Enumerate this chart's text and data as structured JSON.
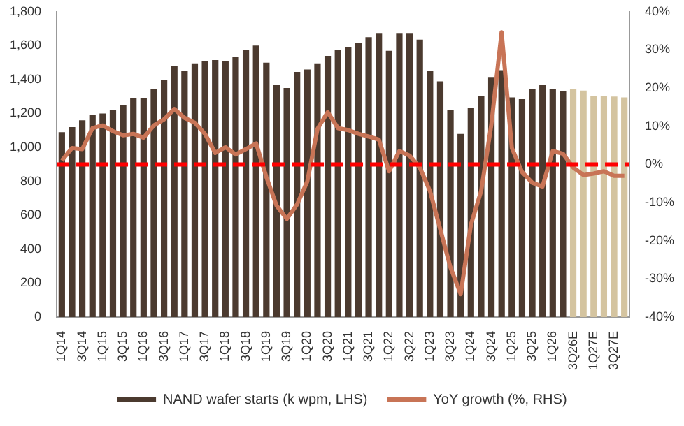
{
  "chart_data": {
    "type": "bar",
    "categories": [
      "1Q14",
      null,
      "3Q14",
      null,
      "1Q15",
      null,
      "3Q15",
      null,
      "1Q16",
      null,
      "3Q16",
      null,
      "1Q17",
      null,
      "3Q17",
      null,
      "1Q18",
      null,
      "3Q18",
      null,
      "1Q19",
      null,
      "3Q19",
      null,
      "1Q20",
      null,
      "3Q20",
      null,
      "1Q21",
      null,
      "3Q21",
      null,
      "1Q22",
      null,
      "3Q22",
      null,
      "1Q23",
      null,
      "3Q23",
      null,
      "1Q24",
      null,
      "3Q24",
      null,
      "1Q25",
      null,
      "3Q25",
      null,
      "1Q26",
      null,
      "3Q26E",
      null,
      "1Q27E",
      null,
      "3Q27E",
      null
    ],
    "series": [
      {
        "name": "NAND wafer starts (k wpm, LHS)",
        "color": "#4b3a2f",
        "colors": [
          "#4b3a2f",
          "#4b3a2f",
          "#4b3a2f",
          "#4b3a2f",
          "#4b3a2f",
          "#4b3a2f",
          "#4b3a2f",
          "#4b3a2f",
          "#4b3a2f",
          "#4b3a2f",
          "#4b3a2f",
          "#4b3a2f",
          "#4b3a2f",
          "#4b3a2f",
          "#4b3a2f",
          "#4b3a2f",
          "#4b3a2f",
          "#4b3a2f",
          "#4b3a2f",
          "#4b3a2f",
          "#4b3a2f",
          "#4b3a2f",
          "#4b3a2f",
          "#4b3a2f",
          "#4b3a2f",
          "#4b3a2f",
          "#4b3a2f",
          "#4b3a2f",
          "#4b3a2f",
          "#4b3a2f",
          "#4b3a2f",
          "#4b3a2f",
          "#4b3a2f",
          "#4b3a2f",
          "#4b3a2f",
          "#4b3a2f",
          "#4b3a2f",
          "#4b3a2f",
          "#4b3a2f",
          "#4b3a2f",
          "#4b3a2f",
          "#4b3a2f",
          "#4b3a2f",
          "#4b3a2f",
          "#4b3a2f",
          "#4b3a2f",
          "#4b3a2f",
          "#4b3a2f",
          "#4b3a2f",
          "#4b3a2f",
          "#d4c4a0",
          "#d4c4a0",
          "#d4c4a0",
          "#d4c4a0",
          "#d4c4a0",
          "#d4c4a0"
        ],
        "values": [
          1090,
          1120,
          1160,
          1190,
          1200,
          1220,
          1250,
          1290,
          1290,
          1345,
          1400,
          1480,
          1450,
          1495,
          1510,
          1515,
          1510,
          1535,
          1575,
          1600,
          1500,
          1370,
          1350,
          1445,
          1460,
          1495,
          1540,
          1575,
          1590,
          1615,
          1650,
          1675,
          1570,
          1675,
          1675,
          1635,
          1450,
          1390,
          1220,
          1080,
          1235,
          1305,
          1415,
          1455,
          1295,
          1285,
          1345,
          1370,
          1345,
          1330,
          1345,
          1335,
          1305,
          1305,
          1300,
          1295
        ]
      },
      {
        "name": "YoY growth (%, RHS)",
        "type": "line",
        "axis": "y2",
        "color": "#c87456",
        "values": [
          1,
          4.3,
          4,
          9.5,
          10.2,
          8.7,
          7.6,
          8,
          7,
          10.2,
          11.8,
          14.5,
          12.2,
          10.9,
          8,
          3,
          4.5,
          2.6,
          4,
          5.5,
          -3.3,
          -10.8,
          -14.3,
          -10.5,
          -4.5,
          9.3,
          13.7,
          9.5,
          9,
          8,
          7.3,
          6.5,
          -1.8,
          3.5,
          2.3,
          -0.8,
          -7,
          -17,
          -27,
          -34,
          -15.8,
          -7,
          10.5,
          34.6,
          4.3,
          -2,
          -4.8,
          -5.8,
          3.5,
          2.8,
          -0.8,
          -2.8,
          -2.4,
          -1.8,
          -3,
          -3
        ]
      }
    ],
    "ylim": [
      0,
      1800
    ],
    "yticks": [
      0,
      200,
      400,
      600,
      800,
      {
        "value": 1000,
        "label": "1,000"
      },
      {
        "value": 1200,
        "label": "1,200"
      },
      {
        "value": 1400,
        "label": "1,400"
      },
      {
        "value": 1600,
        "label": "1,600"
      },
      {
        "value": 1800,
        "label": "1,800"
      }
    ],
    "y2lim": [
      -40,
      40
    ],
    "y2ticks": [
      {
        "value": -40,
        "label": "-40%"
      },
      {
        "value": -30,
        "label": "-30%"
      },
      {
        "value": -20,
        "label": "-20%"
      },
      {
        "value": -10,
        "label": "-10%"
      },
      {
        "value": 0,
        "label": "0%"
      },
      {
        "value": 10,
        "label": "10%"
      },
      {
        "value": 20,
        "label": "20%"
      },
      {
        "value": 30,
        "label": "30%"
      },
      {
        "value": 40,
        "label": "40%"
      }
    ],
    "ref_lines": [
      {
        "axis": "y2",
        "value": 0,
        "color": "#ff0000",
        "line_style": "dashed"
      }
    ],
    "grid": false,
    "legend": "bottom"
  }
}
